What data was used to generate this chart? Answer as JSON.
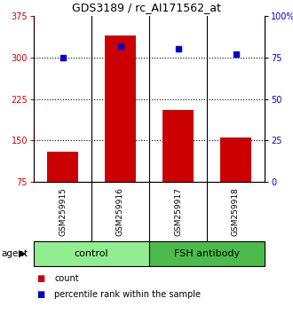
{
  "title": "GDS3189 / rc_AI171562_at",
  "samples": [
    "GSM259915",
    "GSM259916",
    "GSM259917",
    "GSM259918"
  ],
  "counts": [
    130,
    340,
    205,
    155
  ],
  "percentiles": [
    75,
    82,
    80,
    77
  ],
  "ylim_left": [
    75,
    375
  ],
  "ylim_right": [
    0,
    100
  ],
  "yticks_left": [
    75,
    150,
    225,
    300,
    375
  ],
  "yticks_right": [
    0,
    25,
    50,
    75,
    100
  ],
  "ytick_labels_right": [
    "0",
    "25",
    "50",
    "75",
    "100%"
  ],
  "bar_color": "#CC0000",
  "dot_color": "#0000CC",
  "bg_label_area": "#C0C0C0",
  "bg_group_control": "#90EE90",
  "bg_group_fsh": "#4CBB4C",
  "group_control_label": "control",
  "group_fsh_label": "FSH antibody",
  "agent_label": "agent",
  "legend_count_color": "#CC0000",
  "legend_dot_color": "#0000CC",
  "legend_count_label": "count",
  "legend_dot_label": "percentile rank within the sample",
  "hgrid_values": [
    150,
    225,
    300
  ],
  "title_fontsize": 9,
  "tick_fontsize": 7,
  "bar_width": 0.55,
  "dot_markersize": 4
}
